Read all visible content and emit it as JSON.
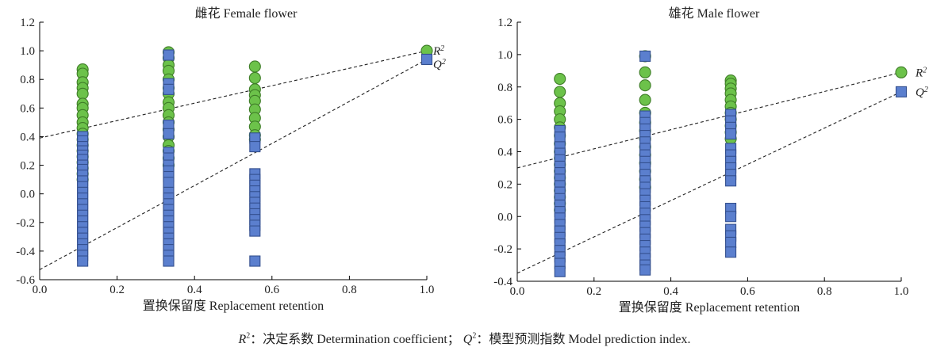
{
  "colors": {
    "r2": "#6cc24a",
    "r2_stroke": "#3f7d28",
    "q2": "#5b7fce",
    "q2_stroke": "#34508f",
    "axis": "#000000"
  },
  "legend": {
    "r2": "R2",
    "q2": "Q2"
  },
  "caption": {
    "r2_symbol": "R",
    "r2_text": "：决定系数 Determination coefficient；",
    "q2_symbol": "Q",
    "q2_text": "：模型预测指数 Model prediction index."
  },
  "chart_data": [
    {
      "type": "scatter",
      "title": "雌花  Female flower",
      "xlabel": "置换保留度  Replacement retention",
      "xlim": [
        0,
        1.0
      ],
      "ylim": [
        -0.6,
        1.2
      ],
      "xticks": [
        "0.0",
        "0.2",
        "0.4",
        "0.6",
        "0.8",
        "1.0"
      ],
      "yticks": [
        "-0.6",
        "-0.4",
        "-0.2",
        "0.0",
        "0.2",
        "0.4",
        "0.6",
        "0.8",
        "1.0",
        "1.2"
      ],
      "series": [
        {
          "name": "R2",
          "marker": "circle",
          "points": [
            [
              0.111,
              0.87
            ],
            [
              0.111,
              0.84
            ],
            [
              0.111,
              0.78
            ],
            [
              0.111,
              0.74
            ],
            [
              0.111,
              0.7
            ],
            [
              0.111,
              0.63
            ],
            [
              0.111,
              0.6
            ],
            [
              0.111,
              0.55
            ],
            [
              0.111,
              0.5
            ],
            [
              0.111,
              0.46
            ],
            [
              0.111,
              0.42
            ],
            [
              0.111,
              0.38
            ],
            [
              0.111,
              0.34
            ],
            [
              0.111,
              0.3
            ],
            [
              0.111,
              0.26
            ],
            [
              0.111,
              0.22
            ],
            [
              0.111,
              0.18
            ],
            [
              0.111,
              0.14
            ],
            [
              0.111,
              0.1
            ],
            [
              0.333,
              0.99
            ],
            [
              0.333,
              0.95
            ],
            [
              0.333,
              0.9
            ],
            [
              0.333,
              0.86
            ],
            [
              0.333,
              0.8
            ],
            [
              0.333,
              0.74
            ],
            [
              0.333,
              0.7
            ],
            [
              0.333,
              0.64
            ],
            [
              0.333,
              0.6
            ],
            [
              0.333,
              0.55
            ],
            [
              0.333,
              0.5
            ],
            [
              0.333,
              0.45
            ],
            [
              0.333,
              0.4
            ],
            [
              0.333,
              0.34
            ],
            [
              0.333,
              0.3
            ],
            [
              0.333,
              0.25
            ],
            [
              0.333,
              0.2
            ],
            [
              0.556,
              0.89
            ],
            [
              0.556,
              0.81
            ],
            [
              0.556,
              0.73
            ],
            [
              0.556,
              0.69
            ],
            [
              0.556,
              0.65
            ],
            [
              0.556,
              0.59
            ],
            [
              0.556,
              0.53
            ],
            [
              0.556,
              0.47
            ],
            [
              0.556,
              0.41
            ],
            [
              0.556,
              0.38
            ],
            [
              1.0,
              1.0
            ]
          ]
        },
        {
          "name": "Q2",
          "marker": "square",
          "points": [
            [
              0.111,
              0.4
            ],
            [
              0.111,
              0.37
            ],
            [
              0.111,
              0.33
            ],
            [
              0.111,
              0.3
            ],
            [
              0.111,
              0.27
            ],
            [
              0.111,
              0.24
            ],
            [
              0.111,
              0.2
            ],
            [
              0.111,
              0.17
            ],
            [
              0.111,
              0.13
            ],
            [
              0.111,
              0.09
            ],
            [
              0.111,
              0.05
            ],
            [
              0.111,
              0.01
            ],
            [
              0.111,
              -0.03
            ],
            [
              0.111,
              -0.07
            ],
            [
              0.111,
              -0.11
            ],
            [
              0.111,
              -0.15
            ],
            [
              0.111,
              -0.19
            ],
            [
              0.111,
              -0.23
            ],
            [
              0.111,
              -0.27
            ],
            [
              0.111,
              -0.31
            ],
            [
              0.111,
              -0.35
            ],
            [
              0.111,
              -0.39
            ],
            [
              0.111,
              -0.43
            ],
            [
              0.111,
              -0.47
            ],
            [
              0.333,
              0.97
            ],
            [
              0.333,
              0.77
            ],
            [
              0.333,
              0.73
            ],
            [
              0.333,
              0.48
            ],
            [
              0.333,
              0.42
            ],
            [
              0.333,
              0.29
            ],
            [
              0.333,
              0.25
            ],
            [
              0.333,
              0.2
            ],
            [
              0.333,
              0.16
            ],
            [
              0.333,
              0.12
            ],
            [
              0.333,
              0.08
            ],
            [
              0.333,
              0.01
            ],
            [
              0.333,
              -0.03
            ],
            [
              0.333,
              -0.07
            ],
            [
              0.333,
              -0.11
            ],
            [
              0.333,
              -0.15
            ],
            [
              0.333,
              -0.19
            ],
            [
              0.333,
              -0.23
            ],
            [
              0.333,
              -0.27
            ],
            [
              0.333,
              -0.31
            ],
            [
              0.333,
              -0.35
            ],
            [
              0.333,
              -0.39
            ],
            [
              0.333,
              -0.43
            ],
            [
              0.333,
              -0.47
            ],
            [
              0.556,
              0.39
            ],
            [
              0.556,
              0.33
            ],
            [
              0.556,
              0.14
            ],
            [
              0.556,
              0.1
            ],
            [
              0.556,
              0.06
            ],
            [
              0.556,
              0.02
            ],
            [
              0.556,
              -0.02
            ],
            [
              0.556,
              -0.06
            ],
            [
              0.556,
              -0.1
            ],
            [
              0.556,
              -0.14
            ],
            [
              0.556,
              -0.18
            ],
            [
              0.556,
              -0.22
            ],
            [
              0.556,
              -0.26
            ],
            [
              0.556,
              -0.47
            ],
            [
              1.0,
              0.94
            ]
          ]
        }
      ],
      "trendlines": [
        {
          "name": "R2",
          "intercept": 0.39,
          "end": 1.0
        },
        {
          "name": "Q2",
          "intercept": -0.53,
          "end": 0.94
        }
      ]
    },
    {
      "type": "scatter",
      "title": "雄花  Male flower",
      "xlabel": "置换保留度  Replacement retention",
      "xlim": [
        0,
        1.0
      ],
      "ylim": [
        -0.4,
        1.2
      ],
      "xticks": [
        "0.0",
        "0.2",
        "0.4",
        "0.6",
        "0.8",
        "1.0"
      ],
      "yticks": [
        "-0.4",
        "-0.2",
        "0.0",
        "0.2",
        "0.4",
        "0.6",
        "0.8",
        "1.0",
        "1.2"
      ],
      "series": [
        {
          "name": "R2",
          "marker": "circle",
          "points": [
            [
              0.111,
              0.85
            ],
            [
              0.111,
              0.77
            ],
            [
              0.111,
              0.7
            ],
            [
              0.111,
              0.65
            ],
            [
              0.111,
              0.6
            ],
            [
              0.111,
              0.55
            ],
            [
              0.111,
              0.5
            ],
            [
              0.111,
              0.45
            ],
            [
              0.111,
              0.4
            ],
            [
              0.111,
              0.36
            ],
            [
              0.111,
              0.32
            ],
            [
              0.111,
              0.28
            ],
            [
              0.111,
              0.24
            ],
            [
              0.111,
              0.2
            ],
            [
              0.111,
              0.16
            ],
            [
              0.111,
              0.12
            ],
            [
              0.111,
              0.08
            ],
            [
              0.111,
              0.04
            ],
            [
              0.333,
              0.99
            ],
            [
              0.333,
              0.89
            ],
            [
              0.333,
              0.81
            ],
            [
              0.333,
              0.72
            ],
            [
              0.333,
              0.64
            ],
            [
              0.333,
              0.58
            ],
            [
              0.333,
              0.53
            ],
            [
              0.333,
              0.48
            ],
            [
              0.333,
              0.43
            ],
            [
              0.333,
              0.38
            ],
            [
              0.333,
              0.33
            ],
            [
              0.333,
              0.28
            ],
            [
              0.333,
              0.23
            ],
            [
              0.333,
              0.18
            ],
            [
              0.556,
              0.84
            ],
            [
              0.556,
              0.82
            ],
            [
              0.556,
              0.79
            ],
            [
              0.556,
              0.76
            ],
            [
              0.556,
              0.72
            ],
            [
              0.556,
              0.68
            ],
            [
              0.556,
              0.64
            ],
            [
              0.556,
              0.6
            ],
            [
              0.556,
              0.56
            ],
            [
              0.556,
              0.52
            ],
            [
              0.556,
              0.48
            ],
            [
              1.0,
              0.89
            ]
          ]
        },
        {
          "name": "Q2",
          "marker": "square",
          "points": [
            [
              0.111,
              0.53
            ],
            [
              0.111,
              0.49
            ],
            [
              0.111,
              0.43
            ],
            [
              0.111,
              0.39
            ],
            [
              0.111,
              0.35
            ],
            [
              0.111,
              0.31
            ],
            [
              0.111,
              0.27
            ],
            [
              0.111,
              0.23
            ],
            [
              0.111,
              0.19
            ],
            [
              0.111,
              0.15
            ],
            [
              0.111,
              0.11
            ],
            [
              0.111,
              0.07
            ],
            [
              0.111,
              0.03
            ],
            [
              0.111,
              -0.01
            ],
            [
              0.111,
              -0.05
            ],
            [
              0.111,
              -0.09
            ],
            [
              0.111,
              -0.13
            ],
            [
              0.111,
              -0.17
            ],
            [
              0.111,
              -0.21
            ],
            [
              0.111,
              -0.25
            ],
            [
              0.111,
              -0.29
            ],
            [
              0.111,
              -0.34
            ],
            [
              0.333,
              0.99
            ],
            [
              0.333,
              0.62
            ],
            [
              0.333,
              0.58
            ],
            [
              0.333,
              0.54
            ],
            [
              0.333,
              0.5
            ],
            [
              0.333,
              0.46
            ],
            [
              0.333,
              0.42
            ],
            [
              0.333,
              0.38
            ],
            [
              0.333,
              0.34
            ],
            [
              0.333,
              0.3
            ],
            [
              0.333,
              0.26
            ],
            [
              0.333,
              0.22
            ],
            [
              0.333,
              0.18
            ],
            [
              0.333,
              0.14
            ],
            [
              0.333,
              0.1
            ],
            [
              0.333,
              0.06
            ],
            [
              0.333,
              0.02
            ],
            [
              0.333,
              -0.02
            ],
            [
              0.333,
              -0.06
            ],
            [
              0.333,
              -0.1
            ],
            [
              0.333,
              -0.14
            ],
            [
              0.333,
              -0.18
            ],
            [
              0.333,
              -0.22
            ],
            [
              0.333,
              -0.26
            ],
            [
              0.333,
              -0.3
            ],
            [
              0.333,
              -0.33
            ],
            [
              0.556,
              0.63
            ],
            [
              0.556,
              0.59
            ],
            [
              0.556,
              0.55
            ],
            [
              0.556,
              0.51
            ],
            [
              0.556,
              0.42
            ],
            [
              0.556,
              0.38
            ],
            [
              0.556,
              0.34
            ],
            [
              0.556,
              0.3
            ],
            [
              0.556,
              0.26
            ],
            [
              0.556,
              0.22
            ],
            [
              0.556,
              0.05
            ],
            [
              0.556,
              0.0
            ],
            [
              0.556,
              -0.08
            ],
            [
              0.556,
              -0.12
            ],
            [
              0.556,
              -0.16
            ],
            [
              0.556,
              -0.22
            ],
            [
              1.0,
              0.77
            ]
          ]
        }
      ],
      "trendlines": [
        {
          "name": "R2",
          "intercept": 0.3,
          "end": 0.89
        },
        {
          "name": "Q2",
          "intercept": -0.35,
          "end": 0.77
        }
      ]
    }
  ]
}
